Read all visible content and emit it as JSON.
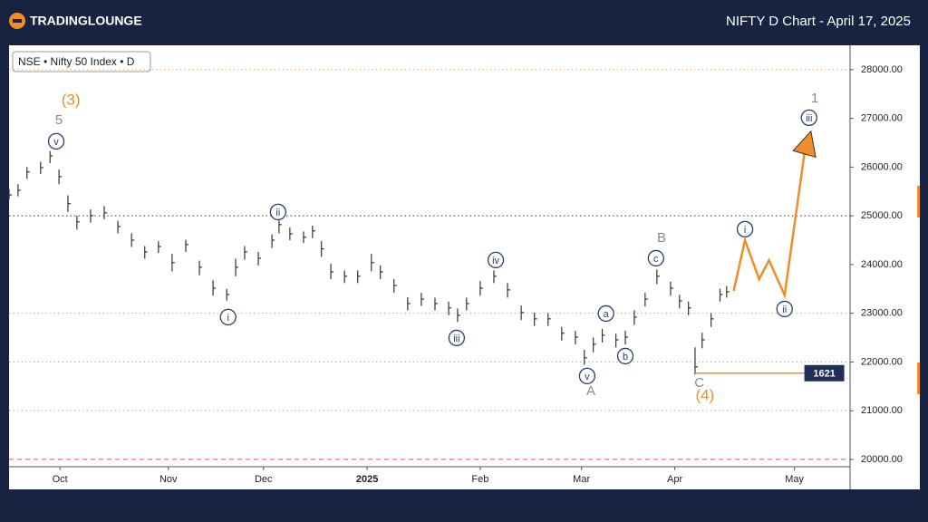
{
  "header": {
    "logo": "TRADINGLOUNGE"
  },
  "chart_data": {
    "type": "ohlc",
    "title": "NIFTY D Chart - April 17, 2025",
    "legend": "NSE • Nifty 50 Index • D",
    "xlim": [
      0,
      178.5
    ],
    "ylim": [
      19850,
      28500
    ],
    "xticks": [
      {
        "value": 10.8,
        "label": "Oct"
      },
      {
        "value": 33.8,
        "label": "Nov"
      },
      {
        "value": 54,
        "label": "Dec"
      },
      {
        "value": 76,
        "label": "2025"
      },
      {
        "value": 100,
        "label": "Feb"
      },
      {
        "value": 121.5,
        "label": "Mar"
      },
      {
        "value": 141.3,
        "label": "Apr"
      },
      {
        "value": 166.7,
        "label": "May"
      }
    ],
    "yticks": [
      {
        "value": 20000,
        "label": "20000.00"
      },
      {
        "value": 21000,
        "label": "21000.00"
      },
      {
        "value": 22000,
        "label": "22000.00"
      },
      {
        "value": 23000,
        "label": "23000.00"
      },
      {
        "value": 24000,
        "label": "24000.00"
      },
      {
        "value": 25000,
        "label": "25000.00"
      },
      {
        "value": 26000,
        "label": "26000.00"
      },
      {
        "value": 27000,
        "label": "27000.00"
      },
      {
        "value": 28000,
        "label": "28000.00"
      }
    ],
    "levels": [
      {
        "value": 28000,
        "color": "#f5a04a",
        "style": "dotted"
      },
      {
        "value": 25000,
        "color": "#333333",
        "style": "dotted"
      },
      {
        "value": 23000,
        "color": "#f5a04a",
        "style": "dotted"
      },
      {
        "value": 22000,
        "color": "#f5a04a",
        "style": "dotted"
      },
      {
        "value": 21000,
        "color": "#f5a04a",
        "style": "dotted"
      },
      {
        "value": 20000,
        "color": "#e05050",
        "style": "dashed"
      }
    ],
    "price": {
      "color": "#333333",
      "x": [
        0,
        1.9,
        3.8,
        6.7,
        8.7,
        10.6,
        12.5,
        14.4,
        17.3,
        20.2,
        23.1,
        26,
        28.8,
        31.7,
        34.6,
        37.5,
        40.4,
        43.3,
        46.2,
        48.1,
        50,
        52.9,
        55.8,
        57.3,
        59.6,
        62.5,
        64.4,
        66.3,
        68.3,
        71.2,
        74,
        76.9,
        78.8,
        81.7,
        84.6,
        87.5,
        90.4,
        93.3,
        95.2,
        97.1,
        100,
        102.9,
        105.8,
        108.7,
        111.5,
        114.4,
        117.3,
        120.2,
        122.1,
        124,
        125.9,
        128.8,
        130.8,
        132.7,
        135,
        137.5,
        140.4,
        142.3,
        144.2,
        145.6,
        147.1,
        149,
        150.9,
        152.3
      ],
      "high": [
        25550,
        25650,
        26000,
        26110,
        26330,
        25950,
        25420,
        25000,
        25130,
        25200,
        24900,
        24640,
        24380,
        24480,
        24220,
        24510,
        24080,
        23680,
        23500,
        24120,
        24380,
        24260,
        24620,
        24940,
        24760,
        24680,
        24800,
        24480,
        24020,
        23880,
        23880,
        24220,
        23980,
        23700,
        23330,
        23420,
        23320,
        23240,
        23100,
        23320,
        23660,
        23880,
        23620,
        23160,
        23010,
        23000,
        22720,
        22640,
        22250,
        22500,
        22680,
        22580,
        22640,
        23060,
        23420,
        23900,
        23650,
        23380,
        23240,
        22300,
        22600,
        23000,
        23500,
        23560
      ],
      "low": [
        25330,
        25400,
        25760,
        25860,
        26080,
        25650,
        25080,
        24720,
        24860,
        24930,
        24640,
        24360,
        24120,
        24240,
        23860,
        24260,
        23780,
        23360,
        23260,
        23760,
        24100,
        23980,
        24340,
        24640,
        24500,
        24440,
        24540,
        24160,
        23700,
        23620,
        23620,
        23860,
        23700,
        23420,
        23060,
        23150,
        23060,
        22960,
        22820,
        23060,
        23360,
        23620,
        23320,
        22860,
        22740,
        22740,
        22440,
        22360,
        21940,
        22200,
        22400,
        22300,
        22360,
        22760,
        23140,
        23600,
        23360,
        23100,
        22960,
        21740,
        22280,
        22720,
        23240,
        23320
      ],
      "close": [
        25430,
        25525,
        25900,
        25990,
        26230,
        25805,
        25250,
        24875,
        25005,
        25060,
        24780,
        24500,
        24260,
        24370,
        24040,
        24410,
        23945,
        23515,
        23385,
        23945,
        24260,
        24130,
        24500,
        24820,
        24630,
        24560,
        24690,
        24320,
        23850,
        23760,
        23760,
        24040,
        23850,
        23570,
        23200,
        23290,
        23200,
        23110,
        22960,
        23200,
        23515,
        23760,
        23480,
        23015,
        22885,
        22885,
        22590,
        22510,
        22085,
        22365,
        22550,
        22455,
        22510,
        22920,
        23290,
        23760,
        23515,
        23255,
        23110,
        21900,
        22455,
        22885,
        23385,
        23440
      ]
    },
    "projection": {
      "color": "#f28c28",
      "x": [
        153.8,
        156.2,
        159.2,
        161.3,
        164.6,
        168.8,
        170.2
      ],
      "values": [
        23460,
        24500,
        23700,
        24090,
        23370,
        26270,
        26735
      ]
    },
    "price_line": {
      "value": 21770,
      "x": [
        145.6,
        168.8
      ],
      "label": "1621",
      "color": "#f28c28"
    },
    "annotations": [
      {
        "text": "(3)",
        "style": "orange",
        "x": 13.1,
        "y": 27367
      },
      {
        "text": "5",
        "style": "gray",
        "x": 10.6,
        "y": 26958
      },
      {
        "text": "v",
        "style": "circle",
        "x": 10,
        "y": 26530
      },
      {
        "text": "ii",
        "style": "circle",
        "x": 57.1,
        "y": 25079
      },
      {
        "text": "i",
        "style": "circle",
        "x": 46.5,
        "y": 22921
      },
      {
        "text": "iii",
        "style": "circle",
        "x": 95,
        "y": 22493
      },
      {
        "text": "iv",
        "style": "circle",
        "x": 103.3,
        "y": 24093
      },
      {
        "text": "v",
        "style": "circle",
        "x": 122.7,
        "y": 21712
      },
      {
        "text": "A",
        "style": "gray",
        "x": 123.5,
        "y": 21395
      },
      {
        "text": "a",
        "style": "circle",
        "x": 126.7,
        "y": 22995
      },
      {
        "text": "b",
        "style": "circle",
        "x": 130.8,
        "y": 22121
      },
      {
        "text": "c",
        "style": "circle",
        "x": 137.3,
        "y": 24130
      },
      {
        "text": "B",
        "style": "gray",
        "x": 138.5,
        "y": 24540
      },
      {
        "text": "C",
        "style": "gray",
        "x": 146.5,
        "y": 21563
      },
      {
        "text": "(4)",
        "style": "orange",
        "x": 147.7,
        "y": 21302
      },
      {
        "text": "i",
        "style": "circle",
        "x": 156.2,
        "y": 24726
      },
      {
        "text": "ii",
        "style": "circle",
        "x": 164.6,
        "y": 23088
      },
      {
        "text": "iii",
        "style": "circle",
        "x": 169.8,
        "y": 27014
      },
      {
        "text": "1",
        "style": "gray",
        "x": 171,
        "y": 27405
      }
    ]
  }
}
